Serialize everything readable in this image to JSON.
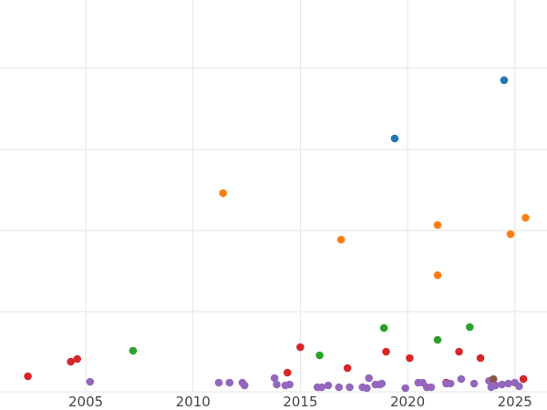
{
  "chart_data": {
    "type": "scatter",
    "title": "",
    "xlabel": "",
    "ylabel": "",
    "xlim": [
      2001,
      2026.5
    ],
    "ylim": [
      0,
      430
    ],
    "x_ticks": [
      2005,
      2010,
      2015,
      2020,
      2025
    ],
    "x_tick_labels": [
      "2005",
      "2010",
      "2015",
      "2020",
      "2025"
    ],
    "y_gridlines": [
      88,
      177,
      266,
      355
    ],
    "grid": true,
    "legend": "none",
    "series": [
      {
        "color": "#1f77b4",
        "points": [
          {
            "x": 2019.4,
            "y": 278
          },
          {
            "x": 2024.5,
            "y": 342
          }
        ]
      },
      {
        "color": "#ff7f0e",
        "points": [
          {
            "x": 2011.4,
            "y": 218
          },
          {
            "x": 2016.9,
            "y": 167
          },
          {
            "x": 2021.4,
            "y": 183
          },
          {
            "x": 2021.4,
            "y": 128
          },
          {
            "x": 2024.8,
            "y": 173
          },
          {
            "x": 2025.5,
            "y": 191
          }
        ]
      },
      {
        "color": "#2ca02c",
        "points": [
          {
            "x": 2007.2,
            "y": 45
          },
          {
            "x": 2015.9,
            "y": 40
          },
          {
            "x": 2018.9,
            "y": 70
          },
          {
            "x": 2021.4,
            "y": 57
          },
          {
            "x": 2022.9,
            "y": 71
          }
        ]
      },
      {
        "color": "#d62728",
        "points": [
          {
            "x": 2002.3,
            "y": 17
          },
          {
            "x": 2004.3,
            "y": 33
          },
          {
            "x": 2004.6,
            "y": 36
          },
          {
            "x": 2014.4,
            "y": 21
          },
          {
            "x": 2015.0,
            "y": 49
          },
          {
            "x": 2017.2,
            "y": 26
          },
          {
            "x": 2019.0,
            "y": 44
          },
          {
            "x": 2020.1,
            "y": 37
          },
          {
            "x": 2021.8,
            "y": 10
          },
          {
            "x": 2022.4,
            "y": 44
          },
          {
            "x": 2023.4,
            "y": 37
          },
          {
            "x": 2025.4,
            "y": 14
          }
        ]
      },
      {
        "color": "#9467bd",
        "points": [
          {
            "x": 2005.2,
            "y": 11
          },
          {
            "x": 2011.2,
            "y": 10
          },
          {
            "x": 2011.7,
            "y": 10
          },
          {
            "x": 2012.3,
            "y": 10
          },
          {
            "x": 2012.4,
            "y": 7
          },
          {
            "x": 2013.8,
            "y": 15
          },
          {
            "x": 2013.9,
            "y": 8
          },
          {
            "x": 2014.3,
            "y": 7
          },
          {
            "x": 2014.5,
            "y": 8
          },
          {
            "x": 2015.8,
            "y": 5
          },
          {
            "x": 2016.0,
            "y": 5
          },
          {
            "x": 2016.3,
            "y": 7
          },
          {
            "x": 2016.8,
            "y": 5
          },
          {
            "x": 2017.3,
            "y": 5
          },
          {
            "x": 2017.9,
            "y": 5
          },
          {
            "x": 2018.1,
            "y": 4
          },
          {
            "x": 2018.2,
            "y": 15
          },
          {
            "x": 2018.5,
            "y": 8
          },
          {
            "x": 2018.7,
            "y": 8
          },
          {
            "x": 2018.8,
            "y": 9
          },
          {
            "x": 2019.9,
            "y": 4
          },
          {
            "x": 2020.5,
            "y": 10
          },
          {
            "x": 2020.7,
            "y": 10
          },
          {
            "x": 2020.9,
            "y": 5
          },
          {
            "x": 2021.1,
            "y": 5
          },
          {
            "x": 2021.8,
            "y": 9
          },
          {
            "x": 2022.0,
            "y": 9
          },
          {
            "x": 2022.5,
            "y": 14
          },
          {
            "x": 2023.1,
            "y": 9
          },
          {
            "x": 2023.8,
            "y": 12
          },
          {
            "x": 2023.9,
            "y": 5
          },
          {
            "x": 2024.1,
            "y": 7
          },
          {
            "x": 2024.4,
            "y": 8
          },
          {
            "x": 2024.7,
            "y": 9
          },
          {
            "x": 2025.0,
            "y": 10
          },
          {
            "x": 2025.2,
            "y": 6
          }
        ]
      },
      {
        "color": "#8c564b",
        "points": [
          {
            "x": 2024.0,
            "y": 14
          }
        ]
      }
    ]
  }
}
